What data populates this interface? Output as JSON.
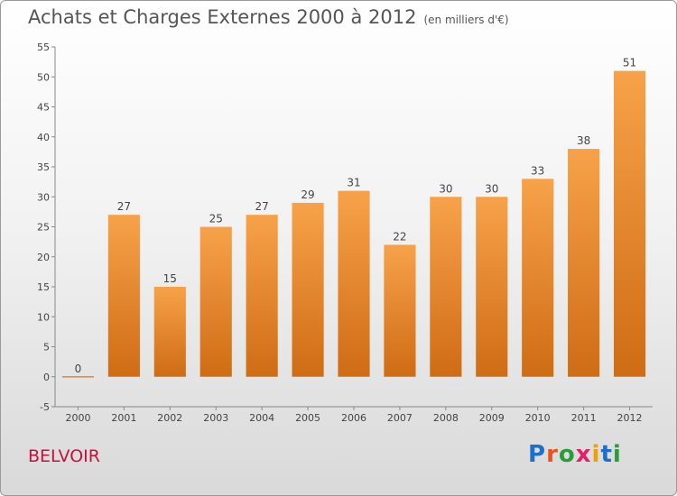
{
  "header": {
    "title": "Achats et Charges Externes 2000 à 2012",
    "subtitle": "(en milliers d'€)"
  },
  "footer": {
    "place": "BELVOIR",
    "logo": "Proxiti",
    "logo_letters": [
      "P",
      "r",
      "o",
      "x",
      "i",
      "t",
      "i"
    ],
    "logo_colors": [
      "#1e6fc9",
      "#e8541c",
      "#2a9d3a",
      "#e81c6c",
      "#f0a000",
      "#1e6fc9",
      "#2a9d3a"
    ]
  },
  "chart_data": {
    "type": "bar",
    "categories": [
      "2000",
      "2001",
      "2002",
      "2003",
      "2004",
      "2005",
      "2006",
      "2007",
      "2008",
      "2009",
      "2010",
      "2011",
      "2012"
    ],
    "values": [
      0,
      27,
      15,
      25,
      27,
      29,
      31,
      22,
      30,
      30,
      33,
      38,
      51
    ],
    "title": "Achats et Charges Externes 2000 à 2012",
    "ylim": [
      -5,
      55
    ],
    "yticks": [
      -5,
      0,
      5,
      10,
      15,
      20,
      25,
      30,
      35,
      40,
      45,
      50,
      55
    ],
    "grid": false,
    "bar_color_top": "#f7a24a",
    "bar_color_bottom": "#cf6c15"
  }
}
